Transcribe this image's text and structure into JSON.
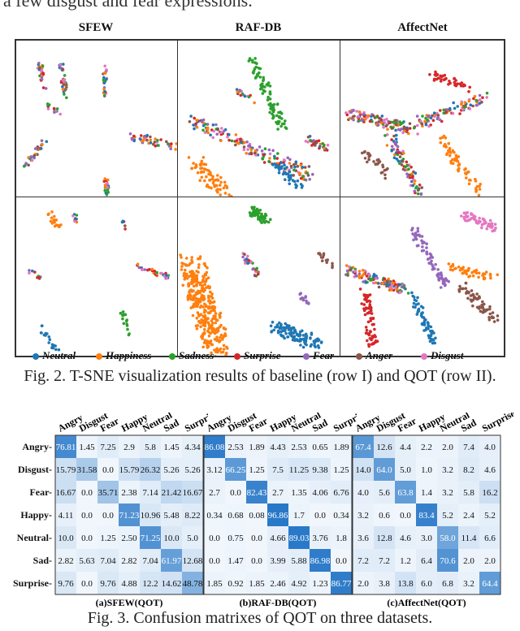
{
  "top_text": "a few disgust and fear expressions.",
  "fig2": {
    "titles": [
      "SFEW",
      "RAF-DB",
      "AffectNet"
    ],
    "legend": [
      {
        "label": "Neutral",
        "color": "#1f77b4"
      },
      {
        "label": "Happiness",
        "color": "#ff7f0e"
      },
      {
        "label": "Sadness",
        "color": "#2ca02c"
      },
      {
        "label": "Surprise",
        "color": "#d62728"
      },
      {
        "label": "Fear",
        "color": "#9467bd"
      },
      {
        "label": "Anger",
        "color": "#8c564b"
      },
      {
        "label": "Disgust",
        "color": "#e377c2"
      }
    ],
    "caption": "Fig. 2. T-SNE visualization results of baseline (row I) and QOT (row II)."
  },
  "fig3": {
    "columns": [
      "Angry",
      "Disgust",
      "Fear",
      "Happy",
      "Neutral",
      "Sad",
      "Surprise"
    ],
    "rows": [
      "Angry-",
      "Disgust-",
      "Fear-",
      "Happy-",
      "Neutral-",
      "Sad-",
      "Surprise-"
    ],
    "caption": "Fig. 3. Confusion matrixes of QOT on three datasets.",
    "matrices": [
      {
        "label": "(a)SFEW(QOT)",
        "values": [
          [
            "76.81",
            "1.45",
            "7.25",
            "2.9",
            "5.8",
            "1.45",
            "4.34"
          ],
          [
            "15.79",
            "31.58",
            "0.0",
            "15.79",
            "26.32",
            "5.26",
            "5.26"
          ],
          [
            "16.67",
            "0.0",
            "35.71",
            "2.38",
            "7.14",
            "21.42",
            "16.67"
          ],
          [
            "4.11",
            "0.0",
            "0.0",
            "71.23",
            "10.96",
            "5.48",
            "8.22"
          ],
          [
            "10.0",
            "0.0",
            "1.25",
            "2.50",
            "71.25",
            "10.0",
            "5.0"
          ],
          [
            "2.82",
            "5.63",
            "7.04",
            "2.82",
            "7.04",
            "61.97",
            "12.68"
          ],
          [
            "9.76",
            "0.0",
            "9.76",
            "4.88",
            "12.2",
            "14.62",
            "48.78"
          ]
        ]
      },
      {
        "label": "(b)RAF-DB(QOT)",
        "values": [
          [
            "86.08",
            "2.53",
            "1.89",
            "4.43",
            "2.53",
            "0.65",
            "1.89"
          ],
          [
            "3.12",
            "66.25",
            "1.25",
            "7.5",
            "11.25",
            "9.38",
            "1.25"
          ],
          [
            "2.7",
            "0.0",
            "82.43",
            "2.7",
            "1.35",
            "4.06",
            "6.76"
          ],
          [
            "0.34",
            "0.68",
            "0.08",
            "96.86",
            "1.7",
            "0.0",
            "0.34"
          ],
          [
            "0.0",
            "0.75",
            "0.0",
            "4.66",
            "89.03",
            "3.76",
            "1.8"
          ],
          [
            "0.0",
            "1.47",
            "0.0",
            "3.99",
            "5.88",
            "86.98",
            "0.0"
          ],
          [
            "1.85",
            "0.92",
            "1.85",
            "2.46",
            "4.92",
            "1.23",
            "86.77"
          ]
        ]
      },
      {
        "label": "(c)AffectNet(QOT)",
        "values": [
          [
            "67.4",
            "12.6",
            "4.4",
            "2.2",
            "2.0",
            "7.4",
            "4.0"
          ],
          [
            "14.0",
            "64.0",
            "5.0",
            "1.0",
            "3.2",
            "8.2",
            "4.6"
          ],
          [
            "4.0",
            "5.6",
            "63.8",
            "1.4",
            "3.2",
            "5.8",
            "16.2"
          ],
          [
            "3.2",
            "0.6",
            "0.0",
            "83.4",
            "5.2",
            "2.4",
            "5.2"
          ],
          [
            "3.6",
            "12.8",
            "4.6",
            "3.0",
            "58.0",
            "11.4",
            "6.6"
          ],
          [
            "7.2",
            "7.2",
            "1.2",
            "6.4",
            "70.6",
            "2.0",
            "2.0"
          ],
          [
            "2.0",
            "3.8",
            "13.8",
            "6.0",
            "6.8",
            "3.2",
            "64.4"
          ]
        ]
      }
    ]
  }
}
